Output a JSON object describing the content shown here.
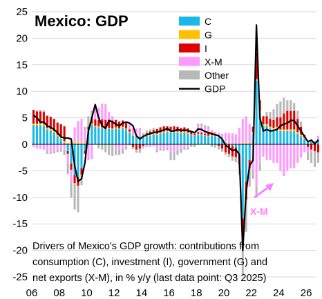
{
  "chart_data": {
    "type": "bar",
    "title": "Mexico: GDP",
    "note_lines": [
      "Drivers of Mexico's GDP growth: contributions from",
      "consumption (C), investment (I), government (G) and",
      "net exports (X-M), in % y/y (last data point: Q3 2025)"
    ],
    "annotation": "X-M",
    "ylim": [
      -25,
      25
    ],
    "yticks": [
      -25,
      -20,
      -15,
      -10,
      -5,
      0,
      5,
      10,
      15,
      20,
      25
    ],
    "xlim": [
      2006,
      2026.75
    ],
    "xticks": [
      2006,
      2008,
      2010,
      2012,
      2014,
      2016,
      2018,
      2020,
      2022,
      2024,
      2026
    ],
    "xtick_labels": [
      "06",
      "08",
      "10",
      "12",
      "14",
      "16",
      "18",
      "20",
      "22",
      "24",
      "26"
    ],
    "legend": [
      "C",
      "G",
      "I",
      "X-M",
      "Other",
      "GDP"
    ],
    "colors": {
      "C": "#1ab8e8",
      "G": "#ffc000",
      "I": "#e00000",
      "X-M": "#ff99ff",
      "Other": "#b8b8b8",
      "GDP": "#000000",
      "annotation": "#ff80ff"
    },
    "period_start": "2006-Q1",
    "series": [
      {
        "name": "C",
        "values": [
          3.6,
          3.6,
          3.6,
          3.5,
          2.8,
          2.6,
          2.2,
          1.5,
          1.0,
          0.3,
          -1.3,
          -3.6,
          -5.8,
          -6.2,
          -4.5,
          -1.2,
          2.6,
          3.7,
          3.3,
          3.2,
          3.0,
          2.9,
          2.9,
          2.8,
          3.0,
          2.8,
          3.1,
          2.8,
          2.2,
          1.6,
          1.5,
          1.4,
          1.4,
          1.6,
          1.6,
          1.9,
          1.8,
          2.0,
          2.2,
          2.3,
          2.3,
          2.3,
          2.2,
          2.1,
          2.2,
          2.0,
          1.8,
          1.6,
          1.9,
          1.8,
          1.6,
          1.5,
          1.6,
          1.5,
          1.3,
          0.9,
          0.3,
          0.0,
          -0.3,
          -0.6,
          -2.0,
          -14.0,
          -7.0,
          -3.0,
          2.0,
          12.0,
          6.0,
          3.5,
          3.5,
          3.0,
          2.8,
          3.0,
          2.5,
          2.5,
          2.5,
          2.5,
          2.5,
          2.0,
          1.5,
          1.0,
          0.5,
          0.5,
          0.3,
          1.0
        ]
      },
      {
        "name": "G",
        "values": [
          0.3,
          0.3,
          0.3,
          0.3,
          0.3,
          0.3,
          0.3,
          0.3,
          0.3,
          0.3,
          0.3,
          0.4,
          0.4,
          0.4,
          0.3,
          0.3,
          0.2,
          0.2,
          0.2,
          0.2,
          0.2,
          0.2,
          0.2,
          0.2,
          0.2,
          0.2,
          0.2,
          0.2,
          0.2,
          0.2,
          0.2,
          0.2,
          0.2,
          0.2,
          0.2,
          0.2,
          0.2,
          0.2,
          0.2,
          0.2,
          0.2,
          0.2,
          0.2,
          0.2,
          0.2,
          0.2,
          0.1,
          0.1,
          0.1,
          0.1,
          0.1,
          0.1,
          0.1,
          0.1,
          0.1,
          0.1,
          0.1,
          0.1,
          0.1,
          0.1,
          0.1,
          0.3,
          0.3,
          0.3,
          0.3,
          0.3,
          0.3,
          0.3,
          0.3,
          0.3,
          0.3,
          0.3,
          0.3,
          0.3,
          0.3,
          0.3,
          0.3,
          0.3,
          0.3,
          0.3,
          0.1,
          0.1,
          0.1,
          0.1
        ]
      },
      {
        "name": "I",
        "values": [
          2.6,
          2.3,
          2.3,
          2.3,
          2.3,
          2.3,
          2.3,
          2.3,
          2.5,
          2.8,
          -0.5,
          -1.2,
          -1.5,
          -1.6,
          -1.2,
          -0.6,
          0.5,
          1.0,
          1.2,
          1.2,
          1.5,
          1.5,
          1.5,
          1.5,
          1.4,
          1.3,
          1.2,
          1.0,
          0.4,
          -0.5,
          -1.0,
          -0.8,
          -0.3,
          0.3,
          0.6,
          0.6,
          0.9,
          1.0,
          1.0,
          0.9,
          0.8,
          0.9,
          0.9,
          0.8,
          0.8,
          0.8,
          0.5,
          0.3,
          0.3,
          0.3,
          0.3,
          0.5,
          0.5,
          0.3,
          -0.3,
          -0.8,
          -1.5,
          -1.8,
          -2.0,
          -1.8,
          -1.7,
          -5.5,
          -3.5,
          -1.5,
          1.0,
          5.0,
          2.0,
          1.5,
          1.5,
          1.5,
          1.5,
          1.8,
          2.3,
          3.0,
          3.5,
          3.5,
          3.5,
          2.5,
          1.5,
          0.5,
          -0.5,
          -1.0,
          -1.3,
          -1.5
        ]
      },
      {
        "name": "X-M",
        "values": [
          -0.5,
          -0.8,
          -0.9,
          -1.0,
          -1.3,
          -1.5,
          -1.3,
          -1.0,
          -0.8,
          -1.0,
          -1.8,
          -2.3,
          2.8,
          4.0,
          4.5,
          2.5,
          -3.0,
          -2.8,
          2.0,
          2.3,
          3.0,
          3.0,
          1.5,
          0.8,
          -1.0,
          -1.0,
          -0.8,
          -0.5,
          1.0,
          1.2,
          1.3,
          1.5,
          -0.5,
          -0.5,
          -0.5,
          -0.4,
          -1.0,
          -0.8,
          -0.8,
          -0.6,
          -1.5,
          -1.5,
          -1.0,
          -0.8,
          -0.5,
          -0.5,
          0.2,
          0.3,
          1.2,
          1.2,
          1.0,
          0.8,
          0.5,
          0.5,
          0.8,
          1.0,
          1.8,
          2.0,
          2.0,
          1.8,
          3.0,
          4.5,
          5.0,
          3.5,
          -5.0,
          -8.0,
          -3.5,
          -2.0,
          -3.0,
          -3.0,
          -3.5,
          -3.5,
          -5.0,
          -6.0,
          -5.0,
          -4.5,
          -4.5,
          -3.5,
          -2.5,
          -1.5,
          -1.0,
          -0.5,
          0.3,
          0.5
        ]
      },
      {
        "name": "Other",
        "values": [
          0.0,
          0.2,
          0.3,
          0.3,
          -0.5,
          -0.3,
          -0.4,
          -0.5,
          -0.6,
          -1.0,
          -2.0,
          -3.0,
          -5.0,
          -5.0,
          -2.0,
          0.5,
          2.0,
          1.5,
          0.8,
          -0.8,
          -1.0,
          -1.5,
          -2.0,
          -2.2,
          -1.0,
          -1.0,
          -1.0,
          -0.5,
          -0.2,
          -0.4,
          -0.6,
          -0.8,
          0.5,
          0.5,
          0.4,
          0.4,
          -0.5,
          -0.4,
          -0.4,
          -0.5,
          -1.5,
          -1.5,
          -1.0,
          -0.8,
          -0.5,
          -0.5,
          -0.5,
          -0.5,
          0.4,
          0.5,
          0.6,
          0.5,
          -0.5,
          -0.6,
          -0.7,
          -0.6,
          -0.5,
          -0.6,
          -0.8,
          -1.0,
          -2.0,
          -5.0,
          -6.0,
          -3.5,
          -1.5,
          -2.0,
          -1.5,
          -0.3,
          0.8,
          1.3,
          2.0,
          2.5,
          3.0,
          3.0,
          2.0,
          2.0,
          1.5,
          1.5,
          1.0,
          0.0,
          -1.5,
          -2.0,
          -3.0,
          -2.0
        ]
      },
      {
        "name": "GDP",
        "type": "line",
        "values": [
          5.5,
          5.0,
          4.2,
          4.2,
          3.5,
          3.2,
          2.8,
          2.2,
          1.4,
          1.2,
          1.2,
          1.0,
          -4.0,
          -7.0,
          -6.5,
          -3.5,
          2.5,
          5.0,
          7.5,
          5.0,
          3.5,
          3.0,
          4.5,
          4.2,
          3.8,
          3.5,
          4.0,
          4.2,
          4.0,
          3.5,
          1.6,
          1.0,
          1.5,
          1.8,
          2.0,
          2.2,
          2.3,
          2.5,
          2.7,
          3.0,
          2.5,
          2.5,
          2.8,
          2.6,
          2.7,
          2.6,
          2.4,
          2.2,
          2.9,
          2.8,
          2.4,
          2.2,
          2.0,
          1.8,
          1.6,
          1.0,
          -0.2,
          -0.6,
          -1.2,
          -1.0,
          -1.9,
          -20.0,
          -9.0,
          -4.0,
          -3.0,
          22.5,
          5.0,
          2.5,
          2.8,
          2.5,
          2.6,
          2.8,
          3.5,
          3.8,
          4.0,
          4.5,
          4.5,
          3.5,
          2.5,
          1.5,
          0.5,
          0.8,
          0.1,
          0.8
        ]
      }
    ]
  }
}
